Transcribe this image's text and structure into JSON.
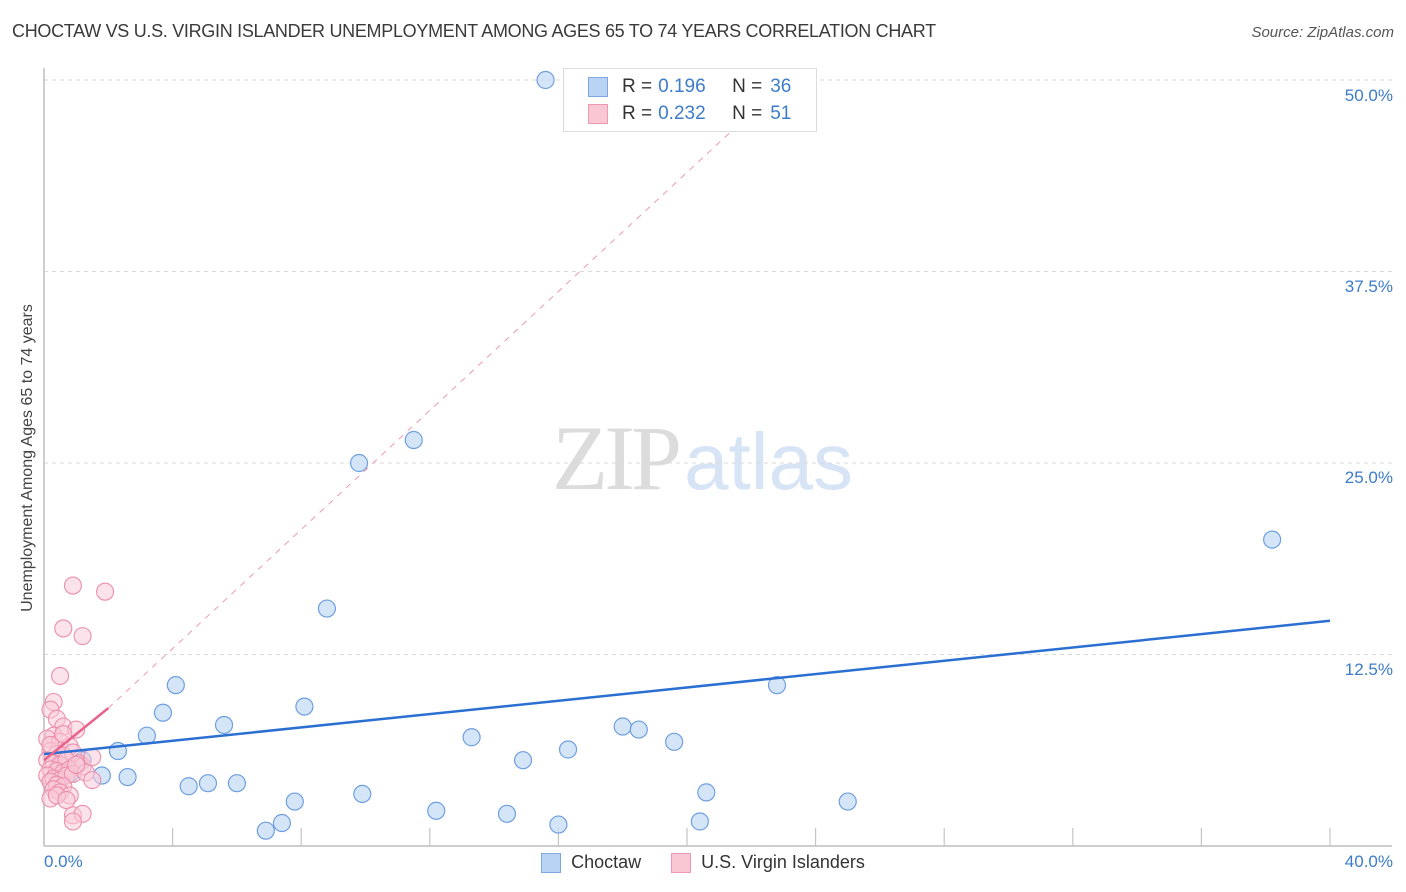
{
  "header": {
    "title": "CHOCTAW VS U.S. VIRGIN ISLANDER UNEMPLOYMENT AMONG AGES 65 TO 74 YEARS CORRELATION CHART",
    "source": "Source: ZipAtlas.com"
  },
  "watermark": {
    "zip": "ZIP",
    "atlas": "atlas"
  },
  "legend": {
    "rows": [
      {
        "swatch_fill": "#b9d3f5",
        "swatch_border": "#7fa8e0",
        "r_label": "R = ",
        "r_value": "0.196",
        "n_label": "N = ",
        "n_value": "36"
      },
      {
        "swatch_fill": "#f9c6d4",
        "swatch_border": "#ec9ab2",
        "r_label": "R = ",
        "r_value": "0.232",
        "n_label": "N = ",
        "n_value": "51"
      }
    ]
  },
  "bottom_legend": [
    {
      "label": "Choctaw",
      "swatch_fill": "#b9d3f5",
      "swatch_border": "#7fa8e0"
    },
    {
      "label": "U.S. Virgin Islanders",
      "swatch_fill": "#f9c6d4",
      "swatch_border": "#ec9ab2"
    }
  ],
  "axes": {
    "ylabel": "Unemployment Among Ages 65 to 74 years",
    "yticks": [
      "50.0%",
      "37.5%",
      "25.0%",
      "12.5%"
    ],
    "xtick_left": "0.0%",
    "xtick_right": "40.0%"
  },
  "colors": {
    "choctaw_fill": "#c7dcf6",
    "choctaw_stroke": "#6f9fe0",
    "choctaw_line": "#2a6fd1",
    "virgin_fill": "#f9cbd8",
    "virgin_stroke": "#ec8fab",
    "virgin_line": "#e8638b",
    "tick_text": "#3d7cc9"
  },
  "chart_data": {
    "type": "scatter",
    "title": "CHOCTAW VS U.S. VIRGIN ISLANDER UNEMPLOYMENT AMONG AGES 65 TO 74 YEARS CORRELATION CHART",
    "xlabel": "",
    "ylabel": "Unemployment Among Ages 65 to 74 years",
    "xlim": [
      0,
      40
    ],
    "ylim": [
      0,
      50
    ],
    "x_unit": "%",
    "y_unit": "%",
    "grid": {
      "horizontal_dashed": [
        12.5,
        25.0,
        37.5,
        50.0
      ]
    },
    "legend_position": "top-center and bottom",
    "series": [
      {
        "name": "Choctaw",
        "R": 0.196,
        "N": 36,
        "points": [
          [
            15.6,
            50.0
          ],
          [
            11.5,
            26.5
          ],
          [
            9.8,
            25.0
          ],
          [
            38.2,
            20.0
          ],
          [
            8.8,
            15.5
          ],
          [
            4.1,
            10.5
          ],
          [
            22.8,
            10.5
          ],
          [
            3.7,
            8.7
          ],
          [
            8.1,
            9.1
          ],
          [
            5.6,
            7.9
          ],
          [
            3.2,
            7.2
          ],
          [
            2.3,
            6.2
          ],
          [
            13.3,
            7.1
          ],
          [
            18.0,
            7.8
          ],
          [
            18.5,
            7.6
          ],
          [
            19.6,
            6.8
          ],
          [
            14.9,
            5.6
          ],
          [
            16.3,
            6.3
          ],
          [
            1.8,
            4.6
          ],
          [
            2.6,
            4.5
          ],
          [
            0.8,
            4.7
          ],
          [
            4.5,
            3.9
          ],
          [
            5.1,
            4.1
          ],
          [
            6.0,
            4.1
          ],
          [
            9.9,
            3.4
          ],
          [
            7.8,
            2.9
          ],
          [
            12.2,
            2.3
          ],
          [
            14.4,
            2.1
          ],
          [
            20.6,
            3.5
          ],
          [
            25.0,
            2.9
          ],
          [
            6.9,
            1.0
          ],
          [
            7.4,
            1.5
          ],
          [
            16.0,
            1.4
          ],
          [
            20.4,
            1.6
          ],
          [
            1.2,
            5.6
          ],
          [
            0.5,
            5.2
          ]
        ],
        "trend": {
          "x": [
            0,
            40
          ],
          "y": [
            6.0,
            14.7
          ]
        }
      },
      {
        "name": "U.S. Virgin Islanders",
        "R": 0.232,
        "N": 51,
        "points": [
          [
            0.9,
            17.0
          ],
          [
            1.9,
            16.6
          ],
          [
            0.6,
            14.2
          ],
          [
            1.2,
            13.7
          ],
          [
            0.5,
            11.1
          ],
          [
            0.3,
            9.4
          ],
          [
            0.2,
            8.9
          ],
          [
            0.4,
            8.3
          ],
          [
            0.6,
            7.8
          ],
          [
            1.0,
            7.6
          ],
          [
            0.3,
            7.2
          ],
          [
            0.1,
            7.0
          ],
          [
            0.5,
            6.8
          ],
          [
            0.8,
            6.5
          ],
          [
            0.2,
            6.2
          ],
          [
            0.4,
            6.0
          ],
          [
            0.6,
            5.9
          ],
          [
            0.9,
            6.1
          ],
          [
            0.1,
            5.6
          ],
          [
            0.3,
            5.4
          ],
          [
            0.5,
            5.3
          ],
          [
            0.7,
            5.6
          ],
          [
            1.1,
            5.4
          ],
          [
            0.2,
            5.0
          ],
          [
            0.4,
            4.9
          ],
          [
            0.6,
            4.8
          ],
          [
            0.8,
            5.0
          ],
          [
            1.2,
            5.2
          ],
          [
            0.1,
            4.6
          ],
          [
            0.3,
            4.4
          ],
          [
            0.5,
            4.3
          ],
          [
            0.7,
            4.6
          ],
          [
            0.9,
            4.7
          ],
          [
            1.3,
            4.8
          ],
          [
            0.2,
            4.2
          ],
          [
            0.4,
            4.0
          ],
          [
            0.6,
            3.9
          ],
          [
            1.5,
            4.3
          ],
          [
            0.3,
            3.7
          ],
          [
            0.5,
            3.5
          ],
          [
            0.8,
            3.3
          ],
          [
            0.2,
            3.1
          ],
          [
            0.4,
            3.3
          ],
          [
            0.7,
            3.0
          ],
          [
            0.9,
            2.0
          ],
          [
            1.2,
            2.1
          ],
          [
            0.9,
            1.6
          ],
          [
            1.5,
            5.8
          ],
          [
            0.2,
            6.6
          ],
          [
            0.6,
            7.3
          ],
          [
            1.0,
            5.3
          ]
        ],
        "trend": {
          "x": [
            0,
            2.0
          ],
          "y": [
            5.6,
            9.0
          ]
        },
        "trend_extension_dashed": {
          "x": [
            2.0,
            23.0
          ],
          "y": [
            9.0,
            49.8
          ]
        }
      }
    ]
  }
}
